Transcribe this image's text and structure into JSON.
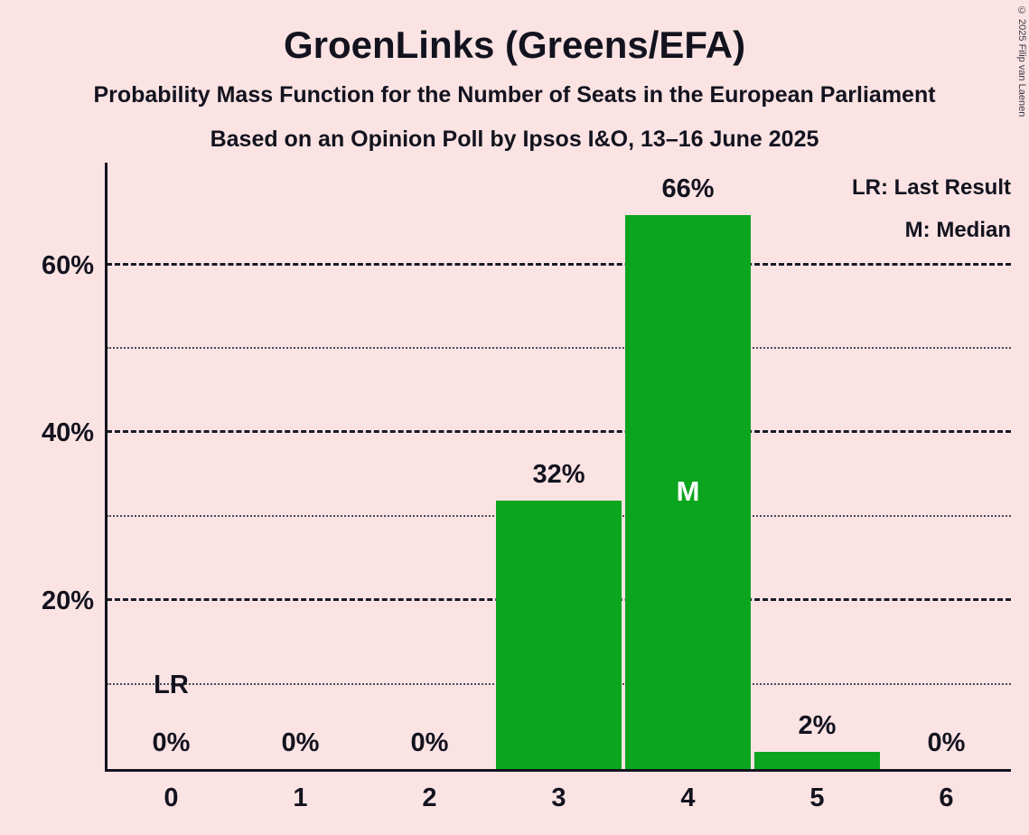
{
  "page": {
    "background": "#fbe3e3",
    "text_color": "#13131f"
  },
  "header": {
    "title": "GroenLinks (Greens/EFA)",
    "subtitle_line1": "Probability Mass Function for the Number of Seats in the European Parliament",
    "subtitle_line2": "Based on an Opinion Poll by Ipsos I&O, 13–16 June 2025"
  },
  "legend": {
    "lr_label": "LR: Last Result",
    "m_label": "M: Median"
  },
  "copyright": "© 2025 Filip van Laenen",
  "chart_data": {
    "type": "bar",
    "title": "GroenLinks (Greens/EFA)",
    "categories": [
      "0",
      "1",
      "2",
      "3",
      "4",
      "5",
      "6"
    ],
    "values": [
      0,
      0,
      0,
      32,
      66,
      2,
      0
    ],
    "value_labels": [
      "0%",
      "0%",
      "0%",
      "32%",
      "66%",
      "2%",
      "0%"
    ],
    "bar_color": "#0ba51e",
    "xlabel": "",
    "ylabel": "",
    "ylim": [
      0,
      72
    ],
    "yticks_major": [
      20,
      40,
      60
    ],
    "ytick_major_labels": [
      "20%",
      "40%",
      "60%"
    ],
    "yticks_minor": [
      10,
      30,
      50
    ],
    "grid": "horizontal",
    "legend_position": "top-right",
    "median": {
      "category": "4",
      "label": "M"
    },
    "last_result": {
      "category": "0",
      "label": "LR",
      "line_level": 10
    }
  }
}
